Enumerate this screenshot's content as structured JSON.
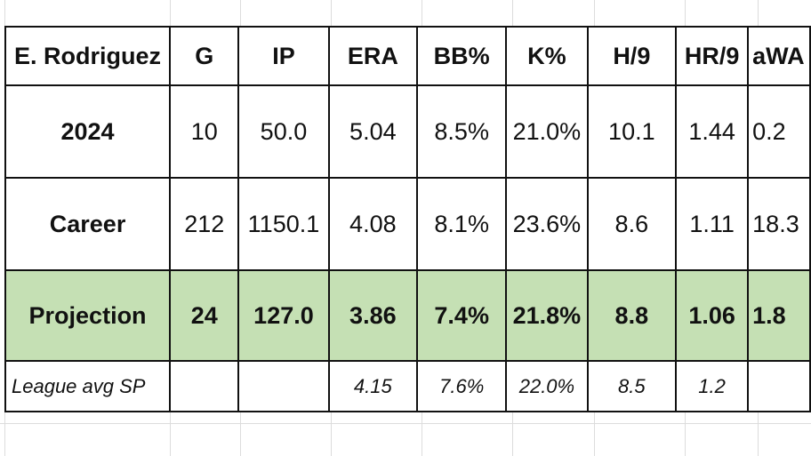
{
  "table": {
    "header": [
      "E. Rodriguez",
      "G",
      "IP",
      "ERA",
      "BB%",
      "K%",
      "H/9",
      "HR/9",
      "aWA"
    ],
    "rows": [
      {
        "label": "2024",
        "values": [
          "10",
          "50.0",
          "5.04",
          "8.5%",
          "21.0%",
          "10.1",
          "1.44",
          "0.2"
        ]
      },
      {
        "label": "Career",
        "values": [
          "212",
          "1150.1",
          "4.08",
          "8.1%",
          "23.6%",
          "8.6",
          "1.11",
          "18.3"
        ]
      },
      {
        "label": "Projection",
        "values": [
          "24",
          "127.0",
          "3.86",
          "7.4%",
          "21.8%",
          "8.8",
          "1.06",
          "1.8"
        ]
      },
      {
        "label": "League avg SP",
        "values": [
          "",
          "",
          "4.15",
          "7.6%",
          "22.0%",
          "8.5",
          "1.2",
          ""
        ]
      }
    ]
  },
  "colors": {
    "projection_fill": "#c5e0b4",
    "border": "#111111",
    "gridline": "#dcdcdc"
  }
}
